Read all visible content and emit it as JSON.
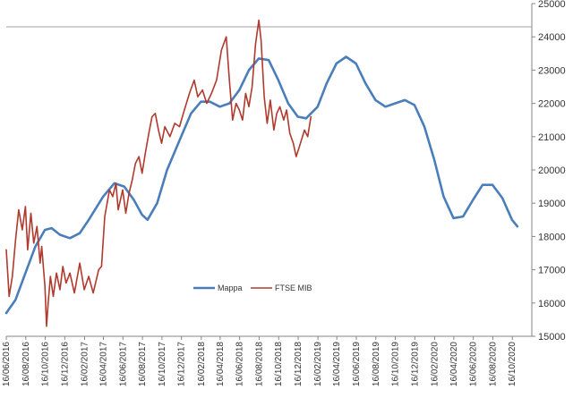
{
  "chart_data": {
    "type": "line",
    "title": "",
    "xlabel": "",
    "ylabel": "",
    "ylim": [
      15000,
      25000
    ],
    "y_ticks": [
      "15000",
      "16000",
      "17000",
      "18000",
      "19000",
      "20000",
      "21000",
      "22000",
      "23000",
      "24000",
      "25000"
    ],
    "y_axis_position": "right",
    "x_range": [
      "2016-06-16",
      "2020-12-16"
    ],
    "x_ticks": [
      {
        "date": "2016-06-16",
        "label": "16/06/2016"
      },
      {
        "date": "2016-08-16",
        "label": "16/08/2016"
      },
      {
        "date": "2016-10-16",
        "label": "16/10/2016"
      },
      {
        "date": "2016-12-16",
        "label": "16/12/2016"
      },
      {
        "date": "2017-02-16",
        "label": "16/02/2017"
      },
      {
        "date": "2017-04-16",
        "label": "16/04/2017"
      },
      {
        "date": "2017-06-16",
        "label": "16/06/2017"
      },
      {
        "date": "2017-08-16",
        "label": "16/08/2017"
      },
      {
        "date": "2017-10-16",
        "label": "16/10/2017"
      },
      {
        "date": "2017-12-16",
        "label": "16/12/2017"
      },
      {
        "date": "2018-02-16",
        "label": "16/02/2018"
      },
      {
        "date": "2018-04-16",
        "label": "16/04/2018"
      },
      {
        "date": "2018-06-16",
        "label": "16/06/2018"
      },
      {
        "date": "2018-08-16",
        "label": "16/08/2018"
      },
      {
        "date": "2018-10-16",
        "label": "16/10/2018"
      },
      {
        "date": "2018-12-16",
        "label": "16/12/2018"
      },
      {
        "date": "2019-02-16",
        "label": "16/02/2019"
      },
      {
        "date": "2019-04-16",
        "label": "16/04/2019"
      },
      {
        "date": "2019-06-16",
        "label": "16/06/2019"
      },
      {
        "date": "2019-08-16",
        "label": "16/08/2019"
      },
      {
        "date": "2019-10-16",
        "label": "16/10/2019"
      },
      {
        "date": "2019-12-16",
        "label": "16/12/2019"
      },
      {
        "date": "2020-02-16",
        "label": "16/02/2020"
      },
      {
        "date": "2020-04-16",
        "label": "16/04/2020"
      },
      {
        "date": "2020-06-16",
        "label": "16/06/2020"
      },
      {
        "date": "2020-08-16",
        "label": "16/08/2020"
      },
      {
        "date": "2020-10-16",
        "label": "16/10/2020"
      }
    ],
    "grid": false,
    "reference_line": {
      "y": 24300,
      "color": "#a0a0a0"
    },
    "legend": {
      "placement": "bottom-center",
      "entries": [
        "Mappa",
        "FTSE MIB"
      ]
    },
    "series": [
      {
        "name": "Mappa",
        "color": "#4a7ebb",
        "points": [
          [
            "2016-06-16",
            15700
          ],
          [
            "2016-07-15",
            16100
          ],
          [
            "2016-08-15",
            16900
          ],
          [
            "2016-09-15",
            17700
          ],
          [
            "2016-10-15",
            18200
          ],
          [
            "2016-11-05",
            18250
          ],
          [
            "2016-12-01",
            18050
          ],
          [
            "2017-01-01",
            17950
          ],
          [
            "2017-02-01",
            18100
          ],
          [
            "2017-03-01",
            18500
          ],
          [
            "2017-04-15",
            19200
          ],
          [
            "2017-05-20",
            19600
          ],
          [
            "2017-06-20",
            19500
          ],
          [
            "2017-07-20",
            19100
          ],
          [
            "2017-08-15",
            18650
          ],
          [
            "2017-09-01",
            18500
          ],
          [
            "2017-10-01",
            19000
          ],
          [
            "2017-11-01",
            20000
          ],
          [
            "2017-12-15",
            21000
          ],
          [
            "2018-01-15",
            21700
          ],
          [
            "2018-02-15",
            22050
          ],
          [
            "2018-03-15",
            22050
          ],
          [
            "2018-04-15",
            21900
          ],
          [
            "2018-05-15",
            22000
          ],
          [
            "2018-06-15",
            22400
          ],
          [
            "2018-07-15",
            23000
          ],
          [
            "2018-08-15",
            23350
          ],
          [
            "2018-09-15",
            23300
          ],
          [
            "2018-10-15",
            22700
          ],
          [
            "2018-11-15",
            22000
          ],
          [
            "2018-12-15",
            21600
          ],
          [
            "2019-01-10",
            21550
          ],
          [
            "2019-02-15",
            21900
          ],
          [
            "2019-03-15",
            22600
          ],
          [
            "2019-04-15",
            23200
          ],
          [
            "2019-05-15",
            23400
          ],
          [
            "2019-06-15",
            23200
          ],
          [
            "2019-07-15",
            22600
          ],
          [
            "2019-08-15",
            22100
          ],
          [
            "2019-09-15",
            21900
          ],
          [
            "2019-10-15",
            22000
          ],
          [
            "2019-11-15",
            22100
          ],
          [
            "2019-12-15",
            21950
          ],
          [
            "2020-01-15",
            21300
          ],
          [
            "2020-02-15",
            20300
          ],
          [
            "2020-03-15",
            19200
          ],
          [
            "2020-04-15",
            18550
          ],
          [
            "2020-05-15",
            18600
          ],
          [
            "2020-06-15",
            19100
          ],
          [
            "2020-07-15",
            19550
          ],
          [
            "2020-08-15",
            19550
          ],
          [
            "2020-09-15",
            19150
          ],
          [
            "2020-10-15",
            18500
          ],
          [
            "2020-11-01",
            18300
          ]
        ]
      },
      {
        "name": "FTSE MIB",
        "color": "#b03a2e",
        "points": [
          [
            "2016-06-16",
            17600
          ],
          [
            "2016-06-25",
            16200
          ],
          [
            "2016-07-05",
            16800
          ],
          [
            "2016-07-15",
            17900
          ],
          [
            "2016-07-25",
            18800
          ],
          [
            "2016-08-05",
            18200
          ],
          [
            "2016-08-15",
            18900
          ],
          [
            "2016-08-22",
            17600
          ],
          [
            "2016-09-01",
            18700
          ],
          [
            "2016-09-10",
            17800
          ],
          [
            "2016-09-20",
            18300
          ],
          [
            "2016-09-30",
            17200
          ],
          [
            "2016-10-05",
            17700
          ],
          [
            "2016-10-15",
            16500
          ],
          [
            "2016-10-20",
            15300
          ],
          [
            "2016-10-25",
            16000
          ],
          [
            "2016-11-01",
            16800
          ],
          [
            "2016-11-10",
            16200
          ],
          [
            "2016-11-20",
            16900
          ],
          [
            "2016-12-01",
            16400
          ],
          [
            "2016-12-10",
            17100
          ],
          [
            "2016-12-20",
            16600
          ],
          [
            "2017-01-01",
            16900
          ],
          [
            "2017-01-15",
            16300
          ],
          [
            "2017-02-01",
            17200
          ],
          [
            "2017-02-15",
            16400
          ],
          [
            "2017-03-01",
            16800
          ],
          [
            "2017-03-15",
            16300
          ],
          [
            "2017-04-01",
            17000
          ],
          [
            "2017-04-10",
            17100
          ],
          [
            "2017-04-20",
            18600
          ],
          [
            "2017-05-05",
            19400
          ],
          [
            "2017-05-15",
            19200
          ],
          [
            "2017-05-25",
            19600
          ],
          [
            "2017-06-01",
            18800
          ],
          [
            "2017-06-15",
            19400
          ],
          [
            "2017-06-25",
            18700
          ],
          [
            "2017-07-05",
            19300
          ],
          [
            "2017-07-15",
            19700
          ],
          [
            "2017-07-25",
            20200
          ],
          [
            "2017-08-05",
            20400
          ],
          [
            "2017-08-15",
            19900
          ],
          [
            "2017-08-25",
            20500
          ],
          [
            "2017-09-05",
            21100
          ],
          [
            "2017-09-15",
            21600
          ],
          [
            "2017-09-25",
            21700
          ],
          [
            "2017-10-05",
            21200
          ],
          [
            "2017-10-15",
            20800
          ],
          [
            "2017-10-25",
            21300
          ],
          [
            "2017-11-10",
            21000
          ],
          [
            "2017-11-25",
            21400
          ],
          [
            "2017-12-10",
            21300
          ],
          [
            "2017-12-25",
            21800
          ],
          [
            "2018-01-10",
            22300
          ],
          [
            "2018-01-25",
            22700
          ],
          [
            "2018-02-05",
            22200
          ],
          [
            "2018-02-20",
            22400
          ],
          [
            "2018-03-05",
            22000
          ],
          [
            "2018-03-20",
            22300
          ],
          [
            "2018-04-05",
            22700
          ],
          [
            "2018-04-20",
            23600
          ],
          [
            "2018-05-05",
            24000
          ],
          [
            "2018-05-15",
            22700
          ],
          [
            "2018-05-25",
            21500
          ],
          [
            "2018-06-05",
            22000
          ],
          [
            "2018-06-15",
            21800
          ],
          [
            "2018-06-25",
            21500
          ],
          [
            "2018-07-05",
            22300
          ],
          [
            "2018-07-15",
            21900
          ],
          [
            "2018-07-25",
            22500
          ],
          [
            "2018-08-05",
            23800
          ],
          [
            "2018-08-15",
            24500
          ],
          [
            "2018-08-22",
            23900
          ],
          [
            "2018-09-01",
            22200
          ],
          [
            "2018-09-10",
            21400
          ],
          [
            "2018-09-20",
            22100
          ],
          [
            "2018-10-01",
            21200
          ],
          [
            "2018-10-10",
            21700
          ],
          [
            "2018-10-20",
            21900
          ],
          [
            "2018-11-01",
            21500
          ],
          [
            "2018-11-10",
            21800
          ],
          [
            "2018-11-20",
            21100
          ],
          [
            "2018-12-01",
            20800
          ],
          [
            "2018-12-10",
            20400
          ],
          [
            "2018-12-20",
            20700
          ],
          [
            "2019-01-05",
            21200
          ],
          [
            "2019-01-15",
            21000
          ],
          [
            "2019-01-25",
            21600
          ]
        ]
      }
    ]
  }
}
